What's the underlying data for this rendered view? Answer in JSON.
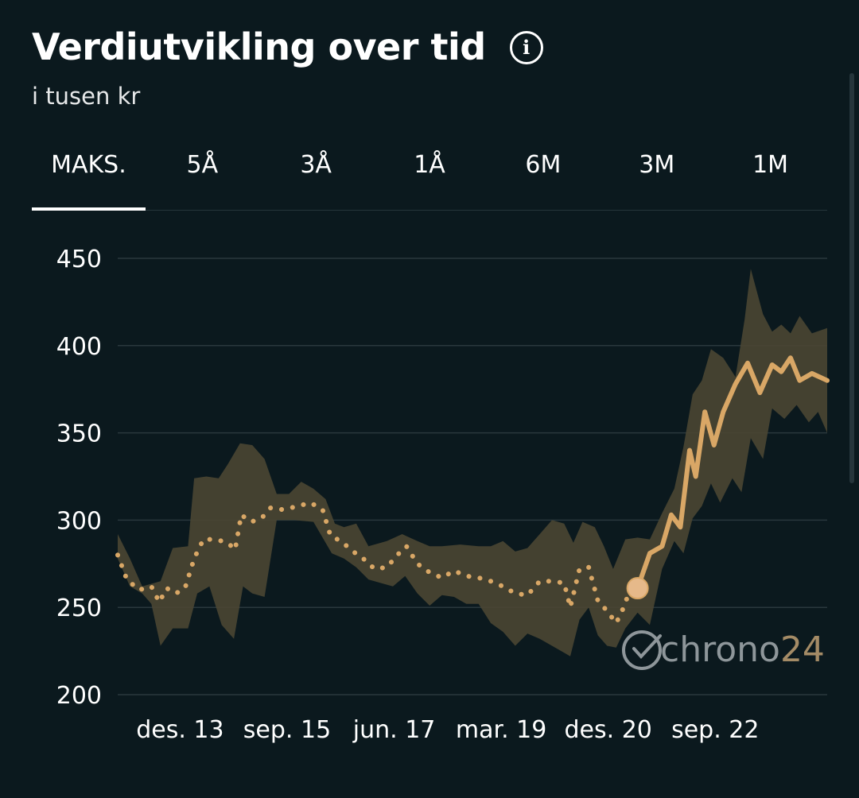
{
  "header": {
    "title": "Verdiutvikling over tid",
    "info_icon": "info-icon",
    "subtitle": "i tusen kr"
  },
  "tabs": [
    {
      "label": "MAKS.",
      "active": true
    },
    {
      "label": "5Å",
      "active": false
    },
    {
      "label": "3Å",
      "active": false
    },
    {
      "label": "1Å",
      "active": false
    },
    {
      "label": "6M",
      "active": false
    },
    {
      "label": "3M",
      "active": false
    },
    {
      "label": "1M",
      "active": false
    }
  ],
  "watermark": {
    "text": "chrono",
    "number": "24"
  },
  "colors": {
    "background": "#0b191e",
    "line": "#d9a766",
    "band": "#4a4632",
    "grid": "#2a383d"
  },
  "chart_data": {
    "type": "line",
    "ylim": [
      200,
      450
    ],
    "yticks": [
      "200",
      "250",
      "300",
      "350",
      "400",
      "450"
    ],
    "xticks": [
      {
        "label": "des. 13",
        "x": 2013.92
      },
      {
        "label": "sep. 15",
        "x": 2015.67
      },
      {
        "label": "jun. 17",
        "x": 2017.42
      },
      {
        "label": "mar. 19",
        "x": 2019.17
      },
      {
        "label": "des. 20",
        "x": 2020.92
      },
      {
        "label": "sep. 22",
        "x": 2022.67
      }
    ],
    "series": [
      {
        "style": "dotted",
        "points": [
          [
            2012.9,
            280
          ],
          [
            2013.05,
            266
          ],
          [
            2013.25,
            260
          ],
          [
            2013.45,
            262
          ],
          [
            2013.58,
            253
          ],
          [
            2013.7,
            261
          ],
          [
            2013.85,
            258
          ],
          [
            2014.0,
            261
          ],
          [
            2014.15,
            278
          ],
          [
            2014.3,
            289
          ],
          [
            2014.5,
            289
          ],
          [
            2014.7,
            287
          ],
          [
            2014.82,
            283
          ],
          [
            2014.92,
            303
          ],
          [
            2015.08,
            299
          ],
          [
            2015.25,
            301
          ],
          [
            2015.4,
            307
          ],
          [
            2015.6,
            306
          ],
          [
            2015.85,
            308
          ],
          [
            2016.05,
            310
          ],
          [
            2016.25,
            306
          ],
          [
            2016.38,
            291
          ],
          [
            2016.55,
            288
          ],
          [
            2016.75,
            282
          ],
          [
            2016.95,
            277
          ],
          [
            2017.1,
            272
          ],
          [
            2017.3,
            273
          ],
          [
            2017.5,
            281
          ],
          [
            2017.62,
            285
          ],
          [
            2017.8,
            275
          ],
          [
            2018.0,
            270
          ],
          [
            2018.2,
            267
          ],
          [
            2018.4,
            271
          ],
          [
            2018.6,
            268
          ],
          [
            2018.8,
            267
          ],
          [
            2019.0,
            265
          ],
          [
            2019.2,
            262
          ],
          [
            2019.4,
            258
          ],
          [
            2019.6,
            257
          ],
          [
            2019.8,
            265
          ],
          [
            2020.0,
            265
          ],
          [
            2020.2,
            264
          ],
          [
            2020.3,
            250
          ],
          [
            2020.45,
            272
          ],
          [
            2020.6,
            273
          ],
          [
            2020.75,
            254
          ],
          [
            2020.9,
            248
          ],
          [
            2021.05,
            241
          ],
          [
            2021.2,
            252
          ],
          [
            2021.3,
            265
          ]
        ]
      },
      {
        "style": "solid",
        "points": [
          [
            2021.4,
            261
          ],
          [
            2021.6,
            281
          ],
          [
            2021.8,
            285
          ],
          [
            2021.95,
            303
          ],
          [
            2022.1,
            296
          ],
          [
            2022.25,
            340
          ],
          [
            2022.35,
            325
          ],
          [
            2022.5,
            362
          ],
          [
            2022.65,
            343
          ],
          [
            2022.8,
            362
          ],
          [
            2023.0,
            378
          ],
          [
            2023.2,
            390
          ],
          [
            2023.4,
            373
          ],
          [
            2023.6,
            389
          ],
          [
            2023.75,
            385
          ],
          [
            2023.9,
            393
          ],
          [
            2024.05,
            380
          ],
          [
            2024.25,
            384
          ],
          [
            2024.5,
            380
          ]
        ]
      }
    ],
    "highlight_point": [
      2021.4,
      261
    ],
    "range_band": {
      "upper": [
        [
          2012.9,
          292
        ],
        [
          2013.1,
          278
        ],
        [
          2013.3,
          262
        ],
        [
          2013.6,
          265
        ],
        [
          2013.8,
          284
        ],
        [
          2014.05,
          285
        ],
        [
          2014.15,
          324
        ],
        [
          2014.35,
          325
        ],
        [
          2014.55,
          324
        ],
        [
          2014.7,
          332
        ],
        [
          2014.9,
          344
        ],
        [
          2015.1,
          343
        ],
        [
          2015.3,
          335
        ],
        [
          2015.5,
          315
        ],
        [
          2015.7,
          315
        ],
        [
          2015.9,
          322
        ],
        [
          2016.1,
          318
        ],
        [
          2016.3,
          312
        ],
        [
          2016.45,
          298
        ],
        [
          2016.6,
          296
        ],
        [
          2016.8,
          298
        ],
        [
          2017.0,
          285
        ],
        [
          2017.3,
          288
        ],
        [
          2017.55,
          292
        ],
        [
          2017.8,
          288
        ],
        [
          2018.0,
          285
        ],
        [
          2018.2,
          285
        ],
        [
          2018.5,
          286
        ],
        [
          2018.8,
          285
        ],
        [
          2019.0,
          285
        ],
        [
          2019.2,
          288
        ],
        [
          2019.4,
          282
        ],
        [
          2019.6,
          284
        ],
        [
          2019.8,
          292
        ],
        [
          2020.0,
          300
        ],
        [
          2020.2,
          298
        ],
        [
          2020.35,
          287
        ],
        [
          2020.5,
          299
        ],
        [
          2020.7,
          296
        ],
        [
          2020.85,
          285
        ],
        [
          2021.0,
          272
        ],
        [
          2021.2,
          289
        ],
        [
          2021.4,
          290
        ],
        [
          2021.6,
          289
        ],
        [
          2021.8,
          304
        ],
        [
          2022.0,
          318
        ],
        [
          2022.15,
          342
        ],
        [
          2022.3,
          372
        ],
        [
          2022.45,
          380
        ],
        [
          2022.6,
          398
        ],
        [
          2022.8,
          393
        ],
        [
          2023.0,
          382
        ],
        [
          2023.15,
          415
        ],
        [
          2023.25,
          444
        ],
        [
          2023.45,
          418
        ],
        [
          2023.6,
          408
        ],
        [
          2023.75,
          412
        ],
        [
          2023.9,
          407
        ],
        [
          2024.05,
          417
        ],
        [
          2024.25,
          407
        ],
        [
          2024.5,
          410
        ]
      ],
      "lower": [
        [
          2012.9,
          278
        ],
        [
          2013.1,
          262
        ],
        [
          2013.3,
          258
        ],
        [
          2013.45,
          252
        ],
        [
          2013.6,
          228
        ],
        [
          2013.8,
          238
        ],
        [
          2014.05,
          238
        ],
        [
          2014.2,
          258
        ],
        [
          2014.4,
          262
        ],
        [
          2014.6,
          240
        ],
        [
          2014.8,
          232
        ],
        [
          2014.95,
          262
        ],
        [
          2015.1,
          258
        ],
        [
          2015.3,
          256
        ],
        [
          2015.5,
          300
        ],
        [
          2015.8,
          300
        ],
        [
          2016.1,
          299
        ],
        [
          2016.4,
          281
        ],
        [
          2016.6,
          278
        ],
        [
          2016.8,
          273
        ],
        [
          2017.0,
          266
        ],
        [
          2017.2,
          264
        ],
        [
          2017.4,
          262
        ],
        [
          2017.6,
          268
        ],
        [
          2017.8,
          258
        ],
        [
          2018.0,
          251
        ],
        [
          2018.2,
          257
        ],
        [
          2018.4,
          256
        ],
        [
          2018.6,
          252
        ],
        [
          2018.8,
          252
        ],
        [
          2019.0,
          241
        ],
        [
          2019.2,
          236
        ],
        [
          2019.4,
          228
        ],
        [
          2019.6,
          235
        ],
        [
          2019.8,
          232
        ],
        [
          2020.0,
          228
        ],
        [
          2020.2,
          224
        ],
        [
          2020.3,
          222
        ],
        [
          2020.45,
          243
        ],
        [
          2020.6,
          250
        ],
        [
          2020.75,
          234
        ],
        [
          2020.9,
          228
        ],
        [
          2021.05,
          227
        ],
        [
          2021.2,
          238
        ],
        [
          2021.4,
          247
        ],
        [
          2021.6,
          240
        ],
        [
          2021.8,
          272
        ],
        [
          2022.0,
          288
        ],
        [
          2022.15,
          281
        ],
        [
          2022.3,
          301
        ],
        [
          2022.45,
          308
        ],
        [
          2022.6,
          321
        ],
        [
          2022.75,
          310
        ],
        [
          2022.95,
          324
        ],
        [
          2023.1,
          316
        ],
        [
          2023.25,
          347
        ],
        [
          2023.45,
          335
        ],
        [
          2023.6,
          364
        ],
        [
          2023.8,
          358
        ],
        [
          2024.0,
          366
        ],
        [
          2024.2,
          356
        ],
        [
          2024.35,
          362
        ],
        [
          2024.5,
          350
        ]
      ]
    }
  }
}
